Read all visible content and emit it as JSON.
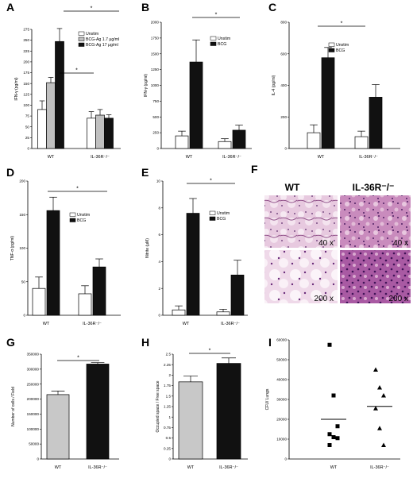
{
  "colors": {
    "unstim": "#ffffff",
    "bcg": "#111111",
    "bcg_low": "#c0c0c0",
    "wt_bar": "#c8c8c8"
  },
  "chart_data": [
    {
      "id": "A",
      "letter": "A",
      "type": "bar",
      "ylabel": "IFN-γ (pg/ml)",
      "ylim": [
        0,
        275
      ],
      "yticks": [
        0,
        25,
        50,
        75,
        100,
        125,
        150,
        175,
        200,
        225,
        250,
        275
      ],
      "groups": [
        "WT",
        "IL-36R⁻/⁻"
      ],
      "series": [
        {
          "name": "Unstim",
          "colorKey": "unstim",
          "values": [
            90,
            70
          ],
          "errors": [
            20,
            15
          ]
        },
        {
          "name": "BCG-Ag 1.7 µg/ml",
          "colorKey": "bcg_low",
          "values": [
            152,
            77
          ],
          "errors": [
            12,
            13
          ]
        },
        {
          "name": "BCG-Ag 17 µg/ml",
          "colorKey": "bcg",
          "values": [
            247,
            70
          ],
          "errors": [
            30,
            8
          ]
        }
      ],
      "sig": [
        "*",
        "*"
      ]
    },
    {
      "id": "B",
      "letter": "B",
      "type": "bar",
      "ylabel": "IFN-γ (pg/ml)",
      "ylim": [
        0,
        2000
      ],
      "yticks": [
        0,
        250,
        500,
        750,
        1000,
        1250,
        1500,
        1750,
        2000
      ],
      "groups": [
        "WT",
        "IL-36R⁻/⁻"
      ],
      "series": [
        {
          "name": "Unstim",
          "colorKey": "unstim",
          "values": [
            200,
            110
          ],
          "errors": [
            75,
            45
          ]
        },
        {
          "name": "BCG",
          "colorKey": "bcg",
          "values": [
            1370,
            290
          ],
          "errors": [
            350,
            80
          ]
        }
      ],
      "sig": [
        "*"
      ]
    },
    {
      "id": "C",
      "letter": "C",
      "type": "bar",
      "ylabel": "IL-4 (pg/ml)",
      "ylim": [
        0,
        800
      ],
      "yticks": [
        0,
        200,
        400,
        600,
        800
      ],
      "groups": [
        "WT",
        "IL-36R⁻/⁻"
      ],
      "series": [
        {
          "name": "Unstim",
          "colorKey": "unstim",
          "values": [
            100,
            75
          ],
          "errors": [
            50,
            35
          ]
        },
        {
          "name": "BCG",
          "colorKey": "bcg",
          "values": [
            575,
            325
          ],
          "errors": [
            65,
            80
          ]
        }
      ],
      "sig": [
        "*"
      ]
    },
    {
      "id": "D",
      "letter": "D",
      "type": "bar",
      "ylabel": "TNF-α (pg/ml)",
      "ylim": [
        0,
        200
      ],
      "yticks": [
        0,
        50,
        100,
        150,
        200
      ],
      "groups": [
        "WT",
        "IL-36R⁻/⁻"
      ],
      "series": [
        {
          "name": "Unstim",
          "colorKey": "unstim",
          "values": [
            40,
            32
          ],
          "errors": [
            17,
            12
          ]
        },
        {
          "name": "BCG",
          "colorKey": "bcg",
          "values": [
            156,
            72
          ],
          "errors": [
            20,
            12
          ]
        }
      ],
      "sig": [
        "*"
      ]
    },
    {
      "id": "E",
      "letter": "E",
      "type": "bar",
      "ylabel": "Nitrite (µM)",
      "ylim": [
        0,
        10
      ],
      "yticks": [
        0,
        2,
        4,
        6,
        8,
        10
      ],
      "groups": [
        "WT",
        "IL-36R⁻/⁻"
      ],
      "series": [
        {
          "name": "Unstim",
          "colorKey": "unstim",
          "values": [
            0.4,
            0.25
          ],
          "errors": [
            0.3,
            0.2
          ]
        },
        {
          "name": "BCG",
          "colorKey": "bcg",
          "values": [
            7.6,
            3.0
          ],
          "errors": [
            1.1,
            1.1
          ]
        }
      ],
      "sig": [
        "*"
      ]
    },
    {
      "id": "G",
      "letter": "G",
      "type": "bar",
      "ylabel": "Number of cells / Field",
      "ylim": [
        0,
        350000
      ],
      "yticks": [
        0,
        50000,
        100000,
        150000,
        200000,
        250000,
        300000,
        350000
      ],
      "groups": [
        "WT",
        "IL-36R⁻/⁻"
      ],
      "series": [
        {
          "name": "",
          "colorKeys": [
            "wt_bar",
            "bcg"
          ],
          "values": [
            215000,
            317000
          ],
          "errors": [
            12000,
            5000
          ]
        }
      ],
      "sig": [
        "*"
      ]
    },
    {
      "id": "H",
      "letter": "H",
      "type": "bar",
      "ylabel": "Occupied space / Free space",
      "ylim": [
        0,
        2.5
      ],
      "yticks": [
        0,
        0.25,
        0.5,
        0.75,
        1.0,
        1.25,
        1.5,
        1.75,
        2.0,
        2.25,
        2.5
      ],
      "groups": [
        "WT",
        "IL-36R⁻/⁻"
      ],
      "series": [
        {
          "name": "",
          "colorKeys": [
            "wt_bar",
            "bcg"
          ],
          "values": [
            1.84,
            2.28
          ],
          "errors": [
            0.14,
            0.13
          ]
        }
      ],
      "sig": [
        "*"
      ]
    },
    {
      "id": "I",
      "letter": "I",
      "type": "scatter",
      "ylabel": "CFU/ Lungs",
      "ylim": [
        0,
        60000
      ],
      "yticks": [
        0,
        10000,
        20000,
        30000,
        40000,
        50000,
        60000
      ],
      "groups": [
        "WT",
        "IL-36R⁻/⁻"
      ],
      "points": [
        {
          "group": 0,
          "marker": "square",
          "values": [
            57500,
            32000,
            16500,
            12500,
            11000,
            10500,
            7000
          ]
        },
        {
          "group": 1,
          "marker": "triangle",
          "values": [
            45000,
            36000,
            32000,
            25500,
            15500,
            7000
          ]
        }
      ],
      "means": [
        20000,
        26500
      ]
    }
  ],
  "histology": {
    "letter": "F",
    "columns": [
      "WT",
      "IL-36R⁻/⁻"
    ],
    "rows": [
      "40 x",
      "200 x"
    ]
  }
}
